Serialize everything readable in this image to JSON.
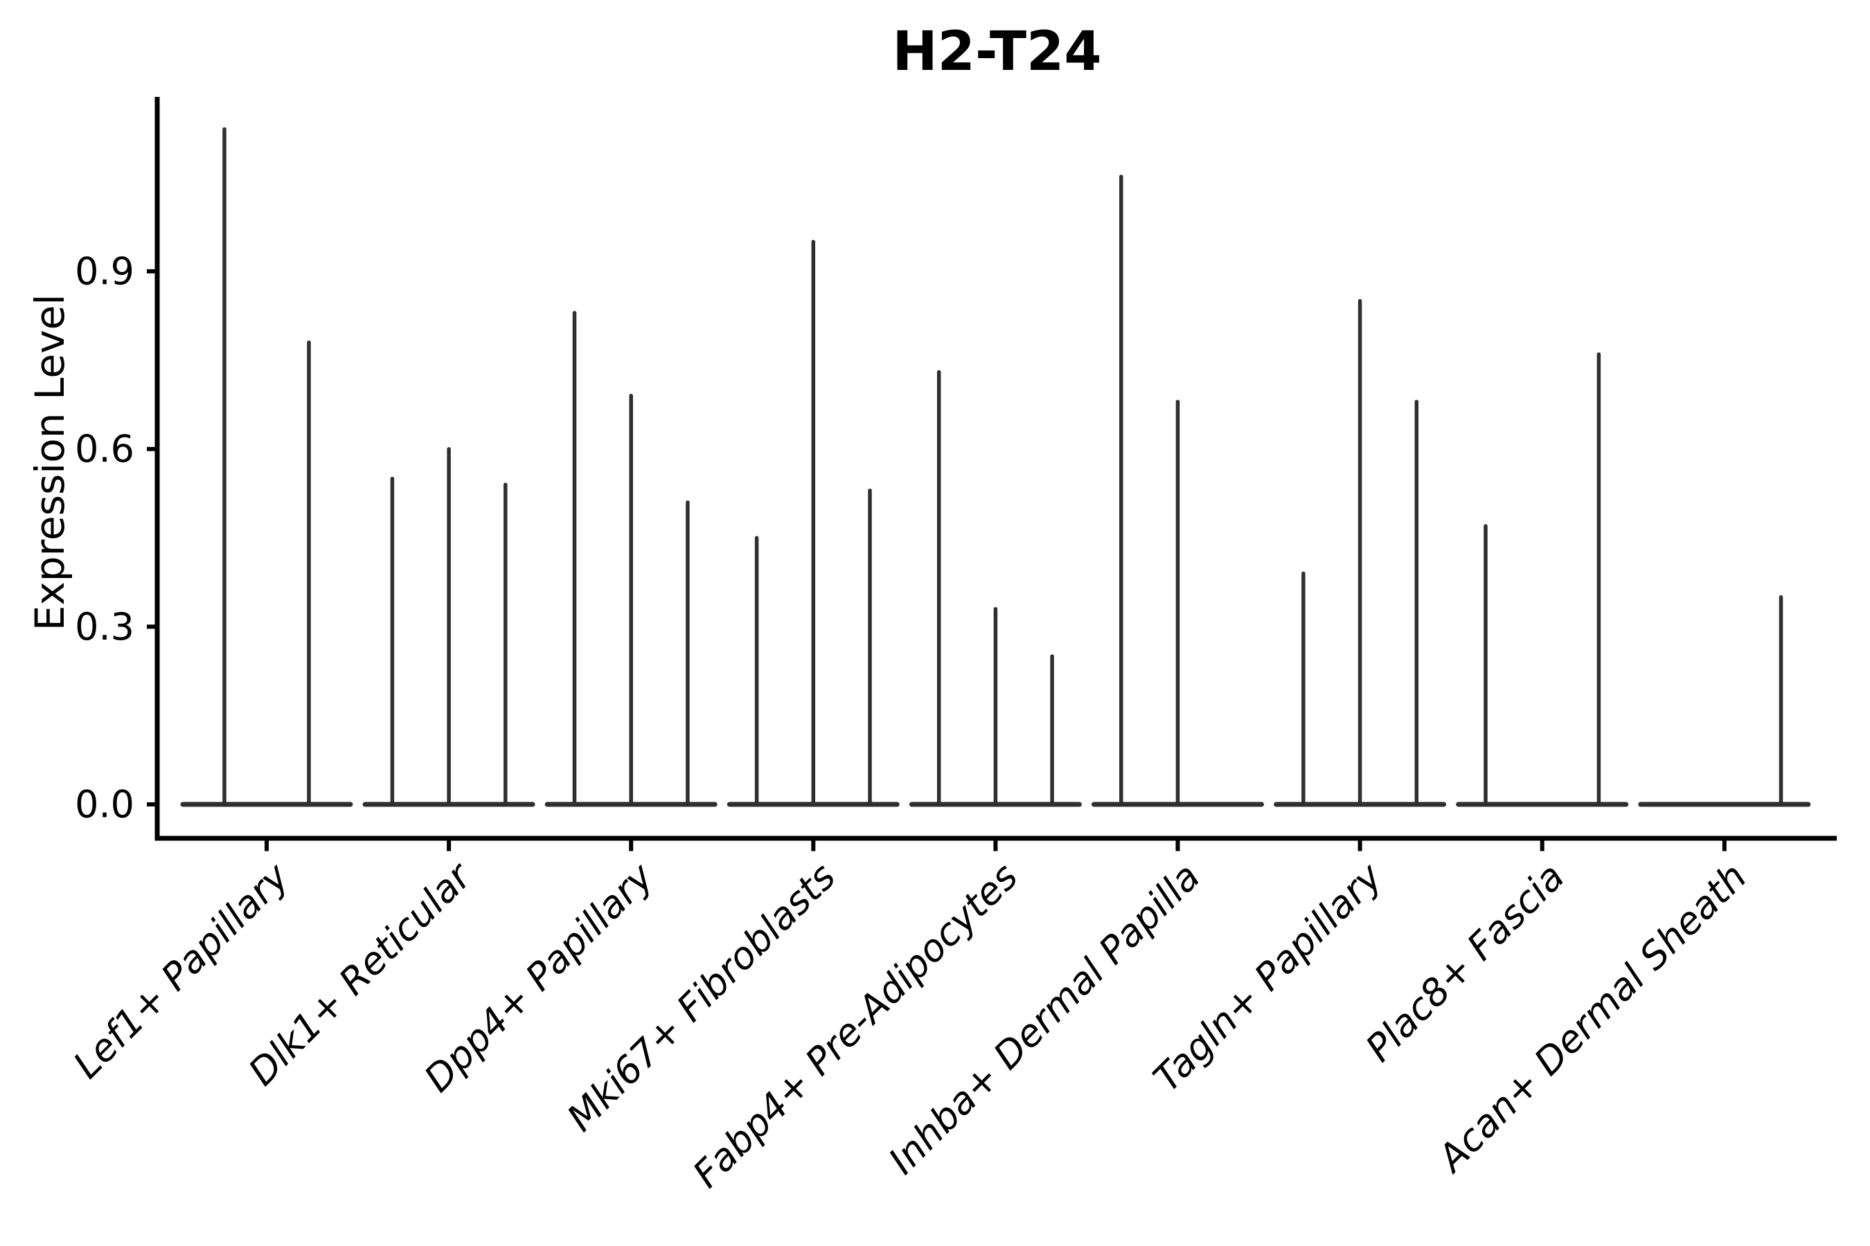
{
  "title": "H2-T24",
  "y_axis": {
    "label": "Expression Level",
    "tick_labels": [
      "0.0",
      "0.3",
      "0.6",
      "0.9"
    ]
  },
  "chart_data": {
    "type": "violin",
    "title": "H2-T24",
    "xlabel": "",
    "ylabel": "Expression Level",
    "ylim": [
      -0.06,
      1.19
    ],
    "y_ticks": [
      0.0,
      0.3,
      0.6,
      0.9
    ],
    "grid": false,
    "legend": "none",
    "orientation": "vertical",
    "description": "Violin plot of H2-T24 expression; each category shows flat zero-density violin bodies with thin spikes reaching the maximum expression of each sub-violin",
    "categories": [
      "Lef1+ Papillary",
      "Dlk1+ Reticular",
      "Dpp4+ Papillary",
      "Mki67+ Fibroblasts",
      "Fabp4+ Pre-Adipocytes",
      "Inhba+ Dermal Papilla",
      "Tagln+ Papillary",
      "Plac8+ Fascia",
      "Acan+ Dermal Sheath"
    ],
    "series": [
      {
        "category": "Lef1+ Papillary",
        "violin_peaks": [
          1.14,
          0.78
        ]
      },
      {
        "category": "Dlk1+ Reticular",
        "violin_peaks": [
          0.55,
          0.6,
          0.54
        ]
      },
      {
        "category": "Dpp4+ Papillary",
        "violin_peaks": [
          0.83,
          0.69,
          0.51
        ]
      },
      {
        "category": "Mki67+ Fibroblasts",
        "violin_peaks": [
          0.45,
          0.95,
          0.53
        ]
      },
      {
        "category": "Fabp4+ Pre-Adipocytes",
        "violin_peaks": [
          0.73,
          0.33,
          0.25
        ]
      },
      {
        "category": "Inhba+ Dermal Papilla",
        "violin_peaks": [
          1.06,
          0.68,
          null
        ]
      },
      {
        "category": "Tagln+ Papillary",
        "violin_peaks": [
          0.39,
          0.85,
          0.68
        ]
      },
      {
        "category": "Plac8+ Fascia",
        "violin_peaks": [
          0.47,
          null,
          0.76
        ]
      },
      {
        "category": "Acan+ Dermal Sheath",
        "violin_peaks": [
          null,
          null,
          0.35
        ]
      }
    ]
  },
  "colors": {
    "violin": "#2f2f2f",
    "axis": "#000000",
    "text": "#000000",
    "background": "#ffffff"
  }
}
